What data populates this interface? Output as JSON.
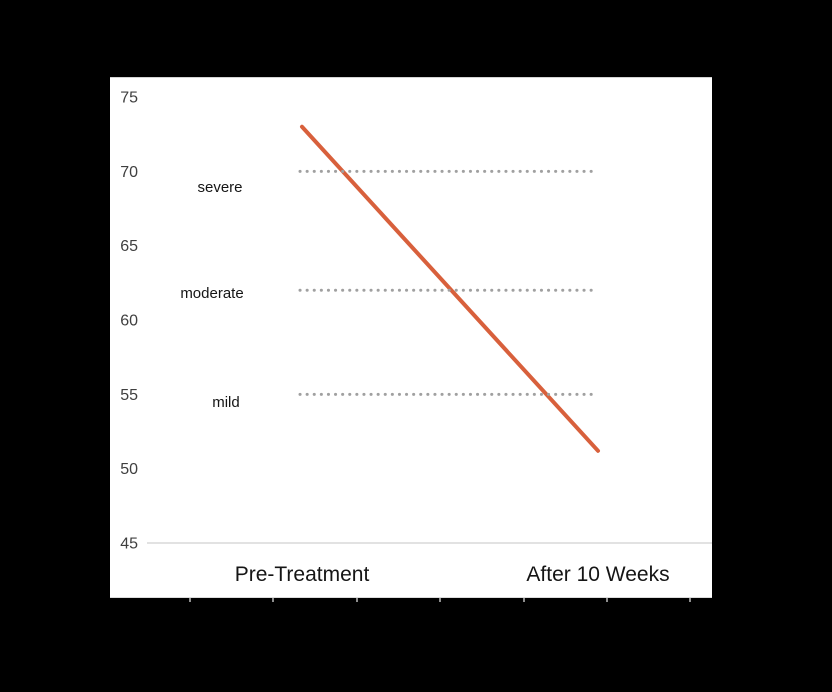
{
  "chart_data": {
    "type": "line",
    "categories": [
      "Pre-Treatment",
      "After 10 Weeks"
    ],
    "series": [
      {
        "name": "symptom-score-trend",
        "values": [
          73,
          51.2
        ],
        "color": "#D8603C",
        "style": "solid"
      }
    ],
    "thresholds": [
      {
        "label": "severe",
        "value": 70
      },
      {
        "label": "moderate",
        "value": 62
      },
      {
        "label": "mild",
        "value": 55
      }
    ],
    "threshold_style": {
      "color": "#A0A0A0",
      "pattern": "dotted"
    },
    "yaxis": {
      "min": 45,
      "max": 75,
      "step": 5,
      "ticks": [
        "75",
        "70",
        "65",
        "60",
        "55",
        "50",
        "45"
      ]
    },
    "title": "",
    "xlabel": "",
    "ylabel": "",
    "grid": false,
    "legend": false,
    "layout_hints": {
      "baseline_at": 45,
      "x_points_span": "quarter-to-three-quarter",
      "plot_bg": "white-on-black-page"
    },
    "colors": {
      "page_bg": "#000000",
      "plot_bg": "#FFFFFF",
      "axis_line": "#D9D9D9",
      "tick_text": "#3F3F3F",
      "category_text": "#151515",
      "threshold_text": "#151515",
      "trend_line": "#D8603C",
      "dot_line": "#A0A0A0",
      "edge_tick": "#8E8E8E"
    }
  }
}
